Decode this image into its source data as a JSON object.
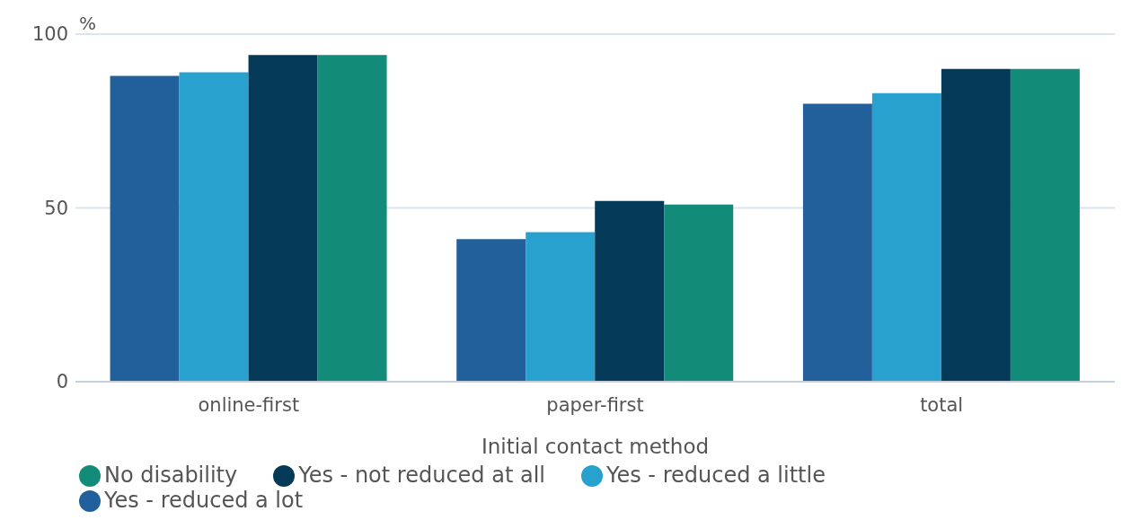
{
  "chart_data": {
    "type": "bar",
    "ylabel": "%",
    "xlabel": "Initial contact method",
    "categories": [
      "online-first",
      "paper-first",
      "total"
    ],
    "series": [
      {
        "name": "Yes - reduced a lot",
        "color": "#21609a",
        "values": [
          88,
          41,
          80
        ]
      },
      {
        "name": "Yes - reduced a little",
        "color": "#29a1cf",
        "values": [
          89,
          43,
          83
        ]
      },
      {
        "name": "Yes - not reduced at all",
        "color": "#043a58",
        "values": [
          94,
          52,
          90
        ]
      },
      {
        "name": "No disability",
        "color": "#128b78",
        "values": [
          94,
          51,
          90
        ]
      }
    ],
    "ylim": [
      0,
      100
    ],
    "yticks": [
      0,
      50,
      100
    ],
    "grid": "y",
    "legend": "bottom"
  }
}
